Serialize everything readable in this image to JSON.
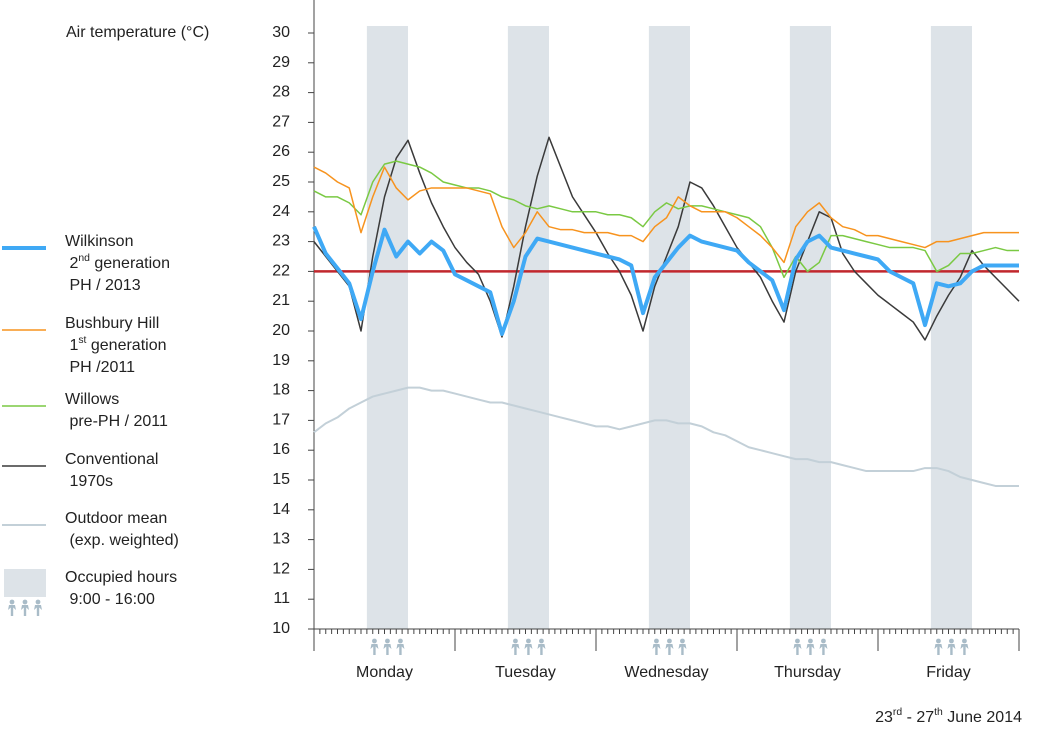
{
  "chart_data": {
    "type": "line",
    "y_label": "Air temperature (°C)",
    "x_label": "23rd - 27th June 2014",
    "categories": [
      "Monday",
      "Tuesday",
      "Wednesday",
      "Thursday",
      "Friday"
    ],
    "xlim": [
      0,
      120
    ],
    "xticks": [
      0,
      24,
      48,
      72,
      96,
      120
    ],
    "x_minor_tick_step": 1,
    "ylim": [
      10,
      30
    ],
    "yticks": [
      10,
      11,
      12,
      13,
      14,
      15,
      16,
      17,
      18,
      19,
      20,
      21,
      22,
      23,
      24,
      25,
      26,
      27,
      28,
      29,
      30
    ],
    "reference_line": {
      "value": 22,
      "color": "#c1272d"
    },
    "occupied": {
      "name": "Occupied hours\n9:00 - 16:00",
      "color": "#dde3e8",
      "hours": [
        [
          9,
          16
        ],
        [
          33,
          40
        ],
        [
          57,
          64
        ],
        [
          81,
          88
        ],
        [
          105,
          112
        ]
      ]
    },
    "x": [
      0,
      2,
      4,
      6,
      8,
      10,
      12,
      14,
      16,
      18,
      20,
      22,
      24,
      26,
      28,
      30,
      32,
      34,
      36,
      38,
      40,
      42,
      44,
      46,
      48,
      50,
      52,
      54,
      56,
      58,
      60,
      62,
      64,
      66,
      68,
      70,
      72,
      74,
      76,
      78,
      80,
      82,
      84,
      86,
      88,
      90,
      92,
      94,
      96,
      98,
      100,
      102,
      104,
      106,
      108,
      110,
      112,
      114,
      116,
      118,
      120
    ],
    "series": [
      {
        "name": "Outdoor mean\n(exp. weighted)",
        "color": "#c3d0d8",
        "width": 2,
        "values": [
          16.6,
          16.9,
          17.1,
          17.4,
          17.6,
          17.8,
          17.9,
          18.0,
          18.1,
          18.1,
          18.0,
          18.0,
          17.9,
          17.8,
          17.7,
          17.6,
          17.6,
          17.5,
          17.4,
          17.3,
          17.2,
          17.1,
          17.0,
          16.9,
          16.8,
          16.8,
          16.7,
          16.8,
          16.9,
          17.0,
          17.0,
          16.9,
          16.9,
          16.8,
          16.6,
          16.5,
          16.3,
          16.1,
          16.0,
          15.9,
          15.8,
          15.7,
          15.7,
          15.6,
          15.6,
          15.5,
          15.4,
          15.3,
          15.3,
          15.3,
          15.3,
          15.3,
          15.4,
          15.4,
          15.3,
          15.1,
          15.0,
          14.9,
          14.8,
          14.8,
          14.8
        ]
      },
      {
        "name": "Conventional\n1970s",
        "color": "#3a3a3a",
        "width": 1.5,
        "values": [
          23.0,
          22.5,
          22.0,
          21.5,
          20.0,
          22.5,
          24.5,
          25.8,
          26.4,
          25.3,
          24.3,
          23.5,
          22.8,
          22.3,
          21.9,
          21.0,
          19.8,
          21.5,
          23.5,
          25.2,
          26.5,
          25.5,
          24.5,
          23.9,
          23.3,
          22.6,
          22.0,
          21.2,
          20.0,
          21.5,
          22.5,
          23.5,
          25.0,
          24.8,
          24.2,
          23.5,
          22.8,
          22.3,
          21.8,
          21.0,
          20.3,
          22.0,
          23.0,
          24.0,
          23.8,
          22.6,
          22.0,
          21.6,
          21.2,
          20.9,
          20.6,
          20.3,
          19.7,
          20.5,
          21.2,
          21.8,
          22.7,
          22.2,
          21.8,
          21.4,
          21.0
        ]
      },
      {
        "name": "Willows\npre-PH / 2011",
        "color": "#7ac943",
        "width": 1.5,
        "values": [
          24.7,
          24.5,
          24.5,
          24.3,
          23.9,
          25.0,
          25.6,
          25.7,
          25.6,
          25.5,
          25.3,
          25.0,
          24.9,
          24.8,
          24.8,
          24.7,
          24.5,
          24.4,
          24.2,
          24.1,
          24.2,
          24.1,
          24.0,
          24.0,
          24.0,
          23.9,
          23.9,
          23.8,
          23.5,
          24.0,
          24.3,
          24.1,
          24.2,
          24.2,
          24.1,
          24.0,
          23.9,
          23.8,
          23.5,
          22.8,
          21.8,
          22.5,
          22.0,
          22.3,
          23.2,
          23.2,
          23.1,
          23.0,
          22.9,
          22.8,
          22.8,
          22.8,
          22.7,
          22.0,
          22.2,
          22.6,
          22.6,
          22.7,
          22.8,
          22.7,
          22.7
        ]
      },
      {
        "name": "Bushbury Hill\n1st generation\nPH /2011",
        "color": "#f7931e",
        "width": 1.5,
        "values": [
          25.5,
          25.3,
          25.0,
          24.8,
          23.3,
          24.5,
          25.5,
          24.8,
          24.4,
          24.7,
          24.8,
          24.8,
          24.8,
          24.8,
          24.7,
          24.6,
          23.5,
          22.8,
          23.3,
          24.0,
          23.5,
          23.4,
          23.4,
          23.3,
          23.3,
          23.3,
          23.2,
          23.2,
          23.0,
          23.5,
          23.8,
          24.5,
          24.2,
          24.0,
          24.0,
          24.0,
          23.8,
          23.5,
          23.2,
          22.8,
          22.3,
          23.5,
          24.0,
          24.3,
          23.8,
          23.5,
          23.4,
          23.2,
          23.2,
          23.1,
          23.0,
          22.9,
          22.8,
          23.0,
          23.0,
          23.1,
          23.2,
          23.3,
          23.3,
          23.3,
          23.3
        ]
      },
      {
        "name": "Wilkinson\n2nd generation\nPH / 2013",
        "color": "#3fa9f5",
        "width": 4,
        "values": [
          23.5,
          22.6,
          22.1,
          21.6,
          20.4,
          22.0,
          23.4,
          22.5,
          23.0,
          22.6,
          23.0,
          22.7,
          21.9,
          21.7,
          21.5,
          21.3,
          19.9,
          21.0,
          22.5,
          23.1,
          23.0,
          22.9,
          22.8,
          22.7,
          22.6,
          22.5,
          22.4,
          22.2,
          20.6,
          21.8,
          22.3,
          22.8,
          23.2,
          23.0,
          22.9,
          22.8,
          22.7,
          22.3,
          22.0,
          21.7,
          20.7,
          22.4,
          23.0,
          23.2,
          22.8,
          22.7,
          22.6,
          22.5,
          22.4,
          22.0,
          21.8,
          21.6,
          20.2,
          21.6,
          21.5,
          21.6,
          22.0,
          22.2,
          22.2,
          22.2,
          22.2
        ]
      }
    ]
  }
}
